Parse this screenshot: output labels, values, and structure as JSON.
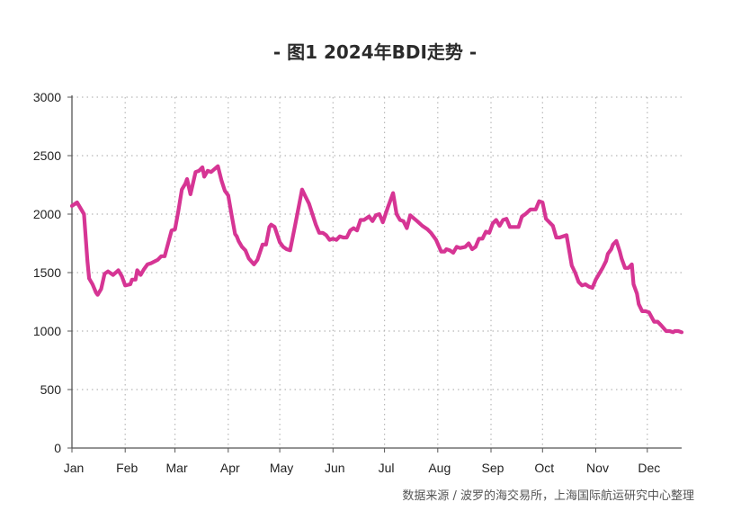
{
  "title": "- 图1 2024年BDI走势 -",
  "source": "数据来源 / 波罗的海交易所，上海国际航运研究中心整理",
  "colors": {
    "line": "#D63594",
    "axis": "#555555",
    "grid": "#b8b8b8"
  },
  "chart_data": {
    "type": "line",
    "title": "- 图1 2024年BDI走势 -",
    "xlabel": "",
    "ylabel": "",
    "xlim": [
      1,
      356
    ],
    "ylim": [
      0,
      3000
    ],
    "y_ticks": [
      0,
      500,
      1000,
      1500,
      2000,
      2500,
      3000
    ],
    "x_tick_labels": [
      "Jan",
      "Feb",
      "Mar",
      "Apr",
      "May",
      "Jun",
      "Jul",
      "Aug",
      "Sep",
      "Oct",
      "Nov",
      "Dec"
    ],
    "x_tick_days": [
      1,
      32,
      61,
      92,
      122,
      153,
      183,
      214,
      245,
      275,
      306,
      336
    ],
    "grid": true,
    "legend": "none",
    "series": [
      {
        "x": [
          1,
          4,
          8,
          10,
          11,
          13,
          15,
          16,
          18,
          20,
          22,
          25,
          28,
          30,
          32,
          35,
          36,
          38,
          39,
          41,
          43,
          45,
          47,
          51,
          53,
          55,
          59,
          61,
          63,
          65,
          67,
          68,
          70,
          73,
          75,
          77,
          78,
          80,
          82,
          86,
          88,
          90,
          92,
          94,
          96,
          97,
          98,
          100,
          102,
          104,
          107,
          109,
          112,
          114,
          116,
          117,
          119,
          122,
          124,
          126,
          128,
          131,
          135,
          137,
          139,
          143,
          145,
          147,
          149,
          151,
          153,
          155,
          157,
          159,
          161,
          163,
          165,
          167,
          169,
          171,
          174,
          176,
          178,
          180,
          182,
          185,
          188,
          190,
          192,
          194,
          196,
          198,
          202,
          205,
          208,
          210,
          213,
          216,
          218,
          219,
          221,
          223,
          225,
          227,
          230,
          232,
          234,
          236,
          238,
          240,
          242,
          244,
          246,
          248,
          250,
          252,
          254,
          256,
          259,
          261,
          263,
          265,
          268,
          271,
          273,
          275,
          277,
          281,
          283,
          285,
          289,
          292,
          294,
          296,
          298,
          300,
          302,
          304,
          306,
          310,
          312,
          313,
          315,
          316,
          318,
          320,
          321,
          323,
          325,
          327,
          328,
          330,
          331,
          333,
          335,
          337,
          340,
          342,
          344,
          347,
          349,
          351,
          352,
          354,
          356
        ],
        "values": [
          2070,
          2100,
          2000,
          1600,
          1450,
          1400,
          1330,
          1310,
          1360,
          1490,
          1510,
          1480,
          1520,
          1470,
          1390,
          1400,
          1440,
          1440,
          1520,
          1480,
          1530,
          1570,
          1580,
          1610,
          1640,
          1640,
          1860,
          1870,
          2030,
          2210,
          2260,
          2300,
          2170,
          2360,
          2370,
          2400,
          2320,
          2370,
          2360,
          2410,
          2290,
          2200,
          2160,
          1990,
          1830,
          1810,
          1770,
          1720,
          1690,
          1620,
          1570,
          1610,
          1740,
          1740,
          1890,
          1910,
          1890,
          1760,
          1720,
          1700,
          1690,
          1910,
          2210,
          2150,
          2090,
          1910,
          1840,
          1840,
          1820,
          1780,
          1790,
          1780,
          1810,
          1800,
          1800,
          1860,
          1880,
          1860,
          1950,
          1950,
          1980,
          1940,
          1990,
          2000,
          1930,
          2060,
          2180,
          2000,
          1950,
          1940,
          1880,
          1990,
          1940,
          1900,
          1870,
          1840,
          1780,
          1680,
          1680,
          1700,
          1690,
          1670,
          1720,
          1710,
          1720,
          1750,
          1700,
          1720,
          1790,
          1790,
          1850,
          1840,
          1920,
          1950,
          1900,
          1950,
          1960,
          1890,
          1890,
          1890,
          1980,
          2000,
          2040,
          2040,
          2110,
          2100,
          1960,
          1900,
          1800,
          1800,
          1820,
          1560,
          1500,
          1420,
          1390,
          1400,
          1380,
          1370,
          1440,
          1540,
          1600,
          1660,
          1700,
          1740,
          1770,
          1680,
          1620,
          1540,
          1540,
          1570,
          1400,
          1320,
          1230,
          1170,
          1170,
          1160,
          1080,
          1080,
          1050,
          1000,
          1000,
          990,
          1000,
          1000,
          990
        ]
      }
    ]
  }
}
